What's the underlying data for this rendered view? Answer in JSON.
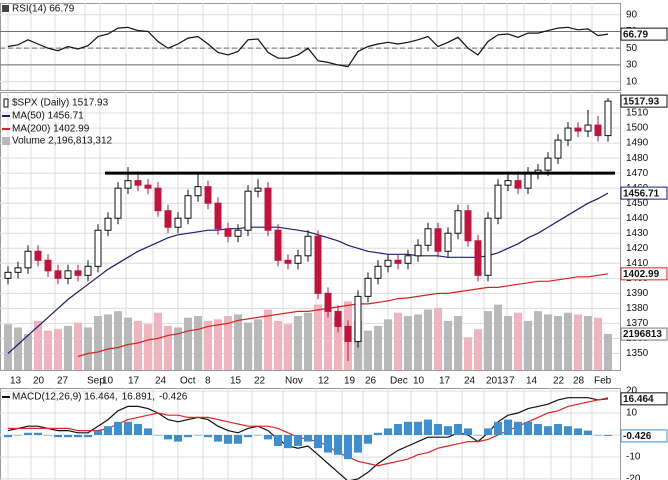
{
  "chart_data": [
    {
      "type": "line",
      "ylim": [
        0,
        104
      ],
      "yticks": [
        10,
        30,
        50,
        70,
        90
      ],
      "levels": [
        {
          "value": 70,
          "style": "solid"
        },
        {
          "value": 50,
          "style": "dashed"
        },
        {
          "value": 30,
          "style": "solid"
        }
      ],
      "series": [
        {
          "name": "RSI(14) 66.79",
          "type": "line",
          "color": "#111111",
          "tag": true,
          "values": [
            52,
            54,
            60,
            55,
            50,
            47,
            52,
            49,
            53,
            64,
            67,
            74,
            75,
            71,
            70,
            58,
            50,
            55,
            62,
            64,
            55,
            45,
            42,
            46,
            60,
            61,
            45,
            38,
            38,
            42,
            50,
            35,
            33,
            30,
            28,
            46,
            52,
            55,
            57,
            55,
            57,
            60,
            64,
            52,
            57,
            63,
            50,
            42,
            58,
            66,
            67,
            63,
            68,
            68,
            71,
            74,
            75,
            72,
            73,
            65,
            66.79
          ]
        }
      ]
    },
    {
      "type": "candlestick",
      "xlim": [
        -0.8,
        61.2
      ],
      "xticks": [
        {
          "value": 0,
          "label": "13"
        },
        {
          "value": 2.3,
          "label": "20"
        },
        {
          "value": 4.7,
          "label": "27"
        },
        {
          "value": 7.7,
          "label": "Sep"
        },
        {
          "value": 9.2,
          "label": "10"
        },
        {
          "value": 11.8,
          "label": "17"
        },
        {
          "value": 14.5,
          "label": "24"
        },
        {
          "value": 17,
          "label": "Oct"
        },
        {
          "value": 19.5,
          "label": "8"
        },
        {
          "value": 22,
          "label": "15"
        },
        {
          "value": 24.4,
          "label": "22"
        },
        {
          "value": 27.5,
          "label": "Nov"
        },
        {
          "value": 30.8,
          "label": "12"
        },
        {
          "value": 33.4,
          "label": "19"
        },
        {
          "value": 35.5,
          "label": "26"
        },
        {
          "value": 38,
          "label": "Dec"
        },
        {
          "value": 40.3,
          "label": "10"
        },
        {
          "value": 42.9,
          "label": "17"
        },
        {
          "value": 45.4,
          "label": "24"
        },
        {
          "value": 47.6,
          "label": "2013"
        },
        {
          "value": 49.9,
          "label": "7"
        },
        {
          "value": 51.6,
          "label": "14"
        },
        {
          "value": 54.3,
          "label": "22"
        },
        {
          "value": 56.3,
          "label": "28"
        },
        {
          "value": 58.4,
          "label": "Feb"
        }
      ],
      "ylim": [
        1339,
        1524
      ],
      "yticks": [
        1350,
        1360,
        1370,
        1380,
        1390,
        1400,
        1410,
        1420,
        1430,
        1440,
        1450,
        1460,
        1470,
        1480,
        1490,
        1500,
        1510
      ],
      "up_color": "#111111",
      "down_color": "#c0143c",
      "hline": {
        "value": 1470,
        "x": [
          9.7,
          60.7
        ],
        "color": "#000000"
      },
      "volume": {
        "name": "Volume 2,196,813,312",
        "vlim": [
          0,
          17000000000
        ],
        "up_color": "#b9b9b9",
        "down_color": "#f0b4bf",
        "tag_label": "2196813",
        "values": [
          2800000000,
          2600000000,
          2200000000,
          3000000000,
          2400000000,
          2500000000,
          2700000000,
          2900000000,
          2600000000,
          3300000000,
          3400000000,
          3600000000,
          3200000000,
          3000000000,
          2800000000,
          3500000000,
          2700000000,
          2600000000,
          3200000000,
          3300000000,
          3000000000,
          3100000000,
          3300000000,
          3400000000,
          2900000000,
          3100000000,
          3700000000,
          3000000000,
          2800000000,
          3300000000,
          3500000000,
          4000000000,
          3600000000,
          3300000000,
          4200000000,
          3000000000,
          2400000000,
          2700000000,
          3100000000,
          3500000000,
          3300000000,
          3400000000,
          3700000000,
          3800000000,
          3000000000,
          3300000000,
          2000000000,
          2500000000,
          3600000000,
          4000000000,
          3300000000,
          3500000000,
          3000000000,
          3600000000,
          3400000000,
          3300000000,
          3500000000,
          3400000000,
          3300000000,
          3200000000,
          2196813312
        ]
      },
      "series": [
        {
          "name": "$SPX (Daily) 1517.93",
          "type": "candlestick",
          "color": "#111111",
          "tag": true,
          "open": [
            1400,
            1404,
            1407,
            1418,
            1412,
            1405,
            1400,
            1405,
            1402,
            1408,
            1432,
            1440,
            1460,
            1465,
            1462,
            1460,
            1445,
            1434,
            1440,
            1455,
            1461,
            1450,
            1433,
            1428,
            1432,
            1458,
            1460,
            1432,
            1412,
            1410,
            1415,
            1428,
            1390,
            1378,
            1368,
            1358,
            1388,
            1400,
            1408,
            1412,
            1410,
            1415,
            1422,
            1433,
            1418,
            1430,
            1445,
            1425,
            1402,
            1440,
            1462,
            1465,
            1460,
            1470,
            1472,
            1480,
            1492,
            1500,
            1498,
            1502,
            1495
          ],
          "high": [
            1408,
            1411,
            1422,
            1422,
            1416,
            1409,
            1409,
            1409,
            1412,
            1436,
            1444,
            1464,
            1474,
            1469,
            1466,
            1464,
            1449,
            1444,
            1459,
            1470,
            1465,
            1454,
            1437,
            1436,
            1462,
            1466,
            1464,
            1436,
            1416,
            1419,
            1432,
            1432,
            1394,
            1382,
            1372,
            1392,
            1404,
            1412,
            1416,
            1416,
            1419,
            1426,
            1437,
            1437,
            1434,
            1449,
            1449,
            1429,
            1444,
            1466,
            1469,
            1469,
            1474,
            1476,
            1484,
            1496,
            1504,
            1504,
            1512,
            1508,
            1520
          ],
          "low": [
            1396,
            1400,
            1403,
            1408,
            1401,
            1396,
            1396,
            1398,
            1398,
            1404,
            1428,
            1436,
            1456,
            1458,
            1456,
            1441,
            1430,
            1430,
            1436,
            1451,
            1446,
            1429,
            1424,
            1424,
            1428,
            1454,
            1428,
            1408,
            1406,
            1406,
            1411,
            1386,
            1374,
            1364,
            1345,
            1354,
            1384,
            1396,
            1404,
            1406,
            1406,
            1411,
            1418,
            1414,
            1414,
            1426,
            1421,
            1398,
            1398,
            1436,
            1458,
            1456,
            1456,
            1466,
            1468,
            1476,
            1488,
            1494,
            1494,
            1491,
            1491
          ],
          "close": [
            1404,
            1407,
            1418,
            1412,
            1405,
            1400,
            1405,
            1402,
            1408,
            1432,
            1440,
            1460,
            1465,
            1462,
            1460,
            1445,
            1434,
            1440,
            1455,
            1461,
            1450,
            1433,
            1428,
            1432,
            1458,
            1460,
            1432,
            1412,
            1410,
            1415,
            1428,
            1390,
            1378,
            1368,
            1358,
            1388,
            1400,
            1408,
            1412,
            1410,
            1415,
            1422,
            1433,
            1418,
            1430,
            1445,
            1425,
            1402,
            1440,
            1462,
            1465,
            1460,
            1470,
            1472,
            1480,
            1492,
            1500,
            1498,
            1502,
            1495,
            1517.93
          ]
        },
        {
          "name": "MA(50) 1456.71",
          "type": "line",
          "color": "#1c1c7a",
          "tag": true,
          "values": [
            1350,
            1356,
            1362,
            1368,
            1374,
            1380,
            1386,
            1391,
            1396,
            1401,
            1406,
            1410,
            1414,
            1418,
            1421,
            1424,
            1427,
            1429,
            1430,
            1431,
            1432,
            1432,
            1433,
            1433,
            1434,
            1434,
            1434,
            1434,
            1433,
            1432,
            1431,
            1429,
            1427,
            1425,
            1422,
            1420,
            1418,
            1417,
            1416,
            1416,
            1416,
            1415,
            1415,
            1415,
            1414,
            1414,
            1414,
            1414,
            1415,
            1417,
            1420,
            1423,
            1427,
            1430,
            1434,
            1438,
            1442,
            1446,
            1450,
            1453,
            1456.71
          ]
        },
        {
          "name": "MA(200) 1402.99",
          "type": "line",
          "color": "#d42424",
          "tag": true,
          "values": [
            null,
            null,
            null,
            null,
            null,
            null,
            null,
            1348,
            1350,
            1351,
            1353,
            1354,
            1356,
            1357,
            1359,
            1360,
            1362,
            1363,
            1365,
            1366,
            1368,
            1369,
            1370,
            1372,
            1373,
            1374,
            1375,
            1376,
            1377,
            1378,
            1378,
            1379,
            1380,
            1381,
            1382,
            1383,
            1383,
            1384,
            1385,
            1386.5,
            1387,
            1388,
            1389,
            1390,
            1390,
            1391,
            1392,
            1393,
            1394,
            1394,
            1395,
            1396,
            1397,
            1398,
            1398,
            1399,
            1400,
            1401,
            1401,
            1402,
            1402.99
          ]
        }
      ]
    },
    {
      "type": "line",
      "ylim": [
        -20.5,
        21.4
      ],
      "yticks": [
        -20,
        -10,
        0,
        10,
        20
      ],
      "series": [
        {
          "name": "MACD(12,26,9) 16.464,",
          "type": "line",
          "color": "#111111",
          "tag": true,
          "values": [
            2,
            3,
            4,
            4,
            3,
            2,
            2,
            1,
            1,
            4,
            7,
            11,
            13,
            13,
            12,
            10,
            7,
            6,
            7,
            8,
            7,
            4,
            2,
            1,
            3,
            4,
            2,
            -2,
            -5,
            -6,
            -5,
            -9,
            -13,
            -17,
            -21,
            -20,
            -17,
            -13,
            -10,
            -7,
            -5,
            -3,
            -1,
            -1,
            -1,
            1,
            0,
            -3,
            1,
            6,
            9,
            10,
            12,
            13,
            14,
            16,
            17,
            17,
            17,
            16,
            16.464
          ]
        },
        {
          "name": "16.891,",
          "type": "line",
          "color": "#e02424",
          "tag": false,
          "values": [
            3,
            3,
            3,
            3,
            3,
            3,
            3,
            2,
            2,
            2,
            3,
            5,
            7,
            8,
            9,
            10,
            9,
            9,
            8,
            8,
            8,
            7,
            6,
            5,
            4,
            4,
            4,
            3,
            1,
            -1,
            -2,
            -3,
            -5,
            -8,
            -10,
            -12,
            -13,
            -14,
            -13,
            -12,
            -11,
            -9,
            -8,
            -6,
            -5,
            -4,
            -3,
            -3,
            -2,
            0,
            2,
            4,
            6,
            8,
            10,
            11,
            13,
            14,
            15,
            16,
            16.891
          ]
        },
        {
          "name": "-0.426",
          "type": "bar",
          "color": "#3d8fd0",
          "tag": true,
          "values": [
            -1,
            0,
            1,
            1,
            0,
            -1,
            -1,
            -1,
            -1,
            2,
            4,
            6,
            6,
            5,
            3,
            0,
            -2,
            -3,
            -1,
            0,
            -1,
            -3,
            -4,
            -4,
            -1,
            0,
            -2,
            -5,
            -6,
            -5,
            -3,
            -6,
            -8,
            -9,
            -11,
            -8,
            -4,
            1,
            3,
            5,
            6,
            6,
            7,
            5,
            4,
            5,
            3,
            0,
            3,
            6,
            7,
            6,
            6,
            5,
            4,
            5,
            4,
            3,
            2,
            0,
            -0.426
          ]
        }
      ]
    }
  ]
}
